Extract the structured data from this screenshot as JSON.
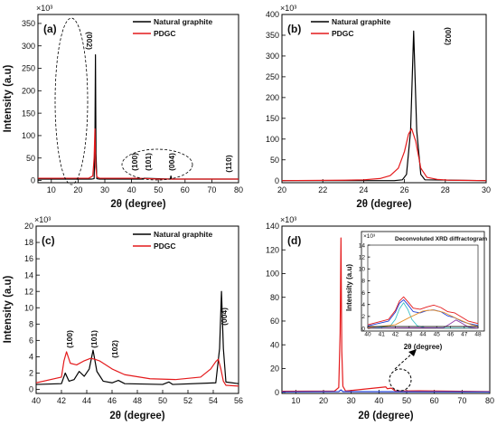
{
  "colors": {
    "natural": "#000000",
    "pdgc": "#e41a1c",
    "blue": "#1f3fd6",
    "cyan": "#3cc1c8",
    "orange": "#e38f2c",
    "purple": "#8e3aa8"
  },
  "chart_data": [
    {
      "id": "a",
      "panel_label": "(a)",
      "type": "line",
      "multiplier": "×10³",
      "xlabel": "2θ (degree)",
      "ylabel": "Intensity (a.u)",
      "xlim": [
        5,
        80
      ],
      "ylim": [
        -5,
        370
      ],
      "xticks": [
        10,
        20,
        30,
        40,
        50,
        60,
        70,
        80
      ],
      "yticks": [
        0,
        50,
        100,
        150,
        200,
        250,
        300,
        350
      ],
      "legend": {
        "position": "top-right",
        "entries": [
          "Natural graphite",
          "PDGC"
        ]
      },
      "series": [
        {
          "name": "Natural graphite",
          "color": "natural",
          "x": [
            5,
            25,
            26.0,
            26.3,
            26.5,
            26.7,
            27.0,
            28,
            42.4,
            44.5,
            44.6,
            54.5,
            54.7,
            55,
            77.5,
            80
          ],
          "y": [
            3,
            3,
            4,
            80,
            280,
            60,
            4,
            3,
            3,
            3,
            5,
            3,
            10,
            3,
            3,
            3
          ]
        },
        {
          "name": "PDGC",
          "color": "pdgc",
          "x": [
            5,
            24,
            25.5,
            26.0,
            26.3,
            26.6,
            27.0,
            28,
            42.3,
            50,
            80
          ],
          "y": [
            5,
            5,
            10,
            50,
            115,
            30,
            8,
            5,
            5,
            3,
            3
          ]
        }
      ],
      "annotations": [
        "(002)",
        "(100)",
        "(101)",
        "(004)",
        "(110)"
      ]
    },
    {
      "id": "b",
      "panel_label": "(b)",
      "type": "line",
      "multiplier": "×10³",
      "xlabel": "2θ (degree)",
      "ylabel": "",
      "xlim": [
        20,
        30
      ],
      "ylim": [
        -5,
        400
      ],
      "xticks": [
        20,
        22,
        24,
        26,
        28,
        30
      ],
      "yticks": [
        0,
        50,
        100,
        150,
        200,
        250,
        300,
        350,
        400
      ],
      "legend": {
        "position": "top-right",
        "entries": [
          "Natural graphite",
          "PDGC"
        ]
      },
      "series": [
        {
          "name": "Natural graphite",
          "color": "natural",
          "x": [
            20,
            25.5,
            25.9,
            26.1,
            26.3,
            26.45,
            26.6,
            26.8,
            27.0,
            30
          ],
          "y": [
            0,
            0,
            2,
            15,
            120,
            360,
            120,
            15,
            2,
            0
          ]
        },
        {
          "name": "PDGC",
          "color": "pdgc",
          "x": [
            20,
            23,
            24,
            24.8,
            25.3,
            25.7,
            26.0,
            26.2,
            26.35,
            26.55,
            26.8,
            27.1,
            27.6,
            28.2,
            30
          ],
          "y": [
            0,
            1,
            2,
            5,
            12,
            30,
            70,
            112,
            125,
            95,
            30,
            8,
            3,
            1,
            0
          ]
        }
      ],
      "annotations": [
        "(002)"
      ]
    },
    {
      "id": "c",
      "panel_label": "(c)",
      "type": "line",
      "multiplier": "×10³",
      "xlabel": "2θ (degree)",
      "ylabel": "Intensity (a.u)",
      "xlim": [
        40,
        56
      ],
      "ylim": [
        -0.5,
        20
      ],
      "xticks": [
        40,
        42,
        44,
        46,
        48,
        50,
        52,
        54,
        56
      ],
      "yticks": [
        0,
        2,
        4,
        6,
        8,
        10,
        12,
        14,
        16,
        18,
        20
      ],
      "legend": {
        "position": "top-right",
        "entries": [
          "Natural graphite",
          "PDGC"
        ]
      },
      "series": [
        {
          "name": "Natural graphite",
          "color": "natural",
          "x": [
            40,
            42.0,
            42.3,
            42.6,
            43.0,
            43.4,
            43.8,
            44.2,
            44.5,
            44.8,
            45.3,
            46.0,
            46.5,
            47,
            50,
            50.5,
            50.8,
            54.2,
            54.5,
            54.65,
            54.8,
            55.0,
            56
          ],
          "y": [
            0.6,
            0.7,
            2.0,
            1.0,
            1.2,
            2.2,
            1.6,
            2.5,
            4.8,
            2.2,
            1.0,
            0.8,
            1.1,
            0.7,
            0.6,
            0.9,
            0.6,
            0.8,
            5.0,
            12.0,
            5.0,
            0.9,
            0.7
          ]
        },
        {
          "name": "PDGC",
          "color": "pdgc",
          "x": [
            40,
            42.0,
            42.2,
            42.4,
            42.7,
            43.2,
            43.8,
            44.3,
            44.6,
            45.0,
            46.0,
            47.0,
            49.0,
            51.0,
            53.0,
            53.8,
            54.2,
            54.4,
            54.6,
            54.8,
            55.0,
            56
          ],
          "y": [
            0.8,
            1.5,
            3.5,
            4.6,
            3.2,
            3.0,
            3.5,
            3.8,
            3.7,
            3.5,
            2.5,
            1.8,
            1.3,
            1.2,
            1.5,
            2.5,
            3.4,
            3.7,
            2.5,
            1.0,
            0.5,
            0.4
          ]
        }
      ],
      "annotations": [
        "(100)",
        "(101)",
        "(102)",
        "(004)"
      ]
    },
    {
      "id": "d",
      "panel_label": "(d)",
      "type": "line",
      "multiplier": "×10³",
      "xlabel": "2θ (degree)",
      "ylabel": "",
      "xlim": [
        5,
        80
      ],
      "ylim": [
        -1,
        140
      ],
      "xticks": [
        10,
        20,
        30,
        40,
        50,
        60,
        70,
        80
      ],
      "yticks": [
        0,
        20,
        40,
        60,
        80,
        100,
        120,
        140
      ],
      "series": [
        {
          "name": "",
          "color": "pdgc",
          "x": [
            5,
            24,
            25.5,
            26.0,
            26.3,
            26.6,
            27.0,
            28,
            42.5,
            43,
            44.5,
            46,
            54.5,
            80
          ],
          "y": [
            0.8,
            1,
            4,
            50,
            130,
            35,
            5,
            1,
            4.5,
            3,
            3.5,
            1,
            1.2,
            0.5
          ]
        },
        {
          "name": "",
          "color": "blue",
          "x": [
            5,
            25.5,
            26.3,
            27.0,
            80
          ],
          "y": [
            0.3,
            0.5,
            2,
            0.5,
            0.3
          ]
        }
      ],
      "inset": {
        "title": "Deconvoluted XRD diffractogram",
        "multiplier": "×10³",
        "xlabel": "2θ (degree)",
        "ylabel": "Intensity (a.u)",
        "xlim": [
          40,
          48
        ],
        "ylim": [
          0,
          14
        ],
        "xticks": [
          40,
          41,
          42,
          43,
          44,
          45,
          46,
          47,
          48
        ],
        "yticks": [
          0,
          2,
          4,
          6,
          8,
          10,
          12,
          14
        ],
        "series": [
          {
            "name": "",
            "color": "pdgc",
            "x": [
              40,
              41.5,
              42.0,
              42.3,
              42.6,
              42.9,
              43.3,
              43.8,
              44.3,
              44.8,
              45.3,
              45.8,
              46.3,
              46.8,
              47.3,
              48
            ],
            "y": [
              0.6,
              1.5,
              3.0,
              4.6,
              5.3,
              4.5,
              3.4,
              3.2,
              3.6,
              3.9,
              3.5,
              2.8,
              2.6,
              1.9,
              1.2,
              0.8
            ]
          },
          {
            "name": "",
            "color": "blue",
            "x": [
              40,
              41.5,
              42.0,
              42.3,
              42.6,
              42.9,
              43.3,
              43.8,
              44.3,
              44.8,
              45.3,
              45.8,
              46.3,
              46.8,
              47.3,
              48
            ],
            "y": [
              0.4,
              1.2,
              2.7,
              4.2,
              4.8,
              4.0,
              2.8,
              2.6,
              3.0,
              3.1,
              2.8,
              2.1,
              1.8,
              1.2,
              0.8,
              0.5
            ]
          },
          {
            "name": "",
            "color": "cyan",
            "x": [
              40,
              41.6,
              42.0,
              42.3,
              42.6,
              42.9,
              43.2,
              43.6,
              44.2,
              48
            ],
            "y": [
              0,
              0.3,
              1.5,
              3.3,
              4.3,
              3.2,
              1.5,
              0.4,
              0.05,
              0
            ]
          },
          {
            "name": "",
            "color": "orange",
            "x": [
              40,
              42.0,
              43.0,
              44.0,
              44.7,
              45.5,
              46.5,
              47.5,
              48
            ],
            "y": [
              0.1,
              0.6,
              1.8,
              2.9,
              3.1,
              2.7,
              1.6,
              0.6,
              0.3
            ]
          },
          {
            "name": "",
            "color": "purple",
            "x": [
              40,
              45.5,
              46.0,
              46.4,
              46.8,
              47.3,
              48
            ],
            "y": [
              0,
              0.1,
              0.8,
              1.4,
              0.9,
              0.2,
              0
            ]
          },
          {
            "name": "",
            "color": "natural",
            "x": [
              40,
              48
            ],
            "y": [
              0.3,
              0.3
            ]
          }
        ]
      }
    }
  ]
}
